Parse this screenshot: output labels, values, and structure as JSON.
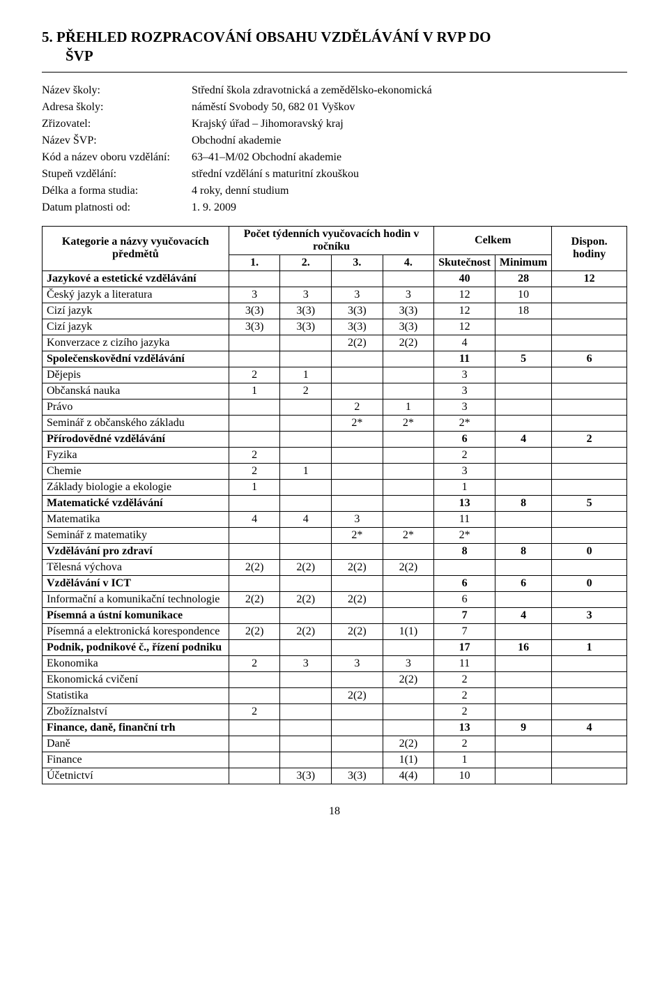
{
  "heading": "5. PŘEHLED ROZPRACOVÁNÍ OBSAHU VZDĚLÁVÁNÍ V RVP DO",
  "heading_line2": "ŠVP",
  "meta": {
    "school_name_label": "Název školy:",
    "school_name": "Střední škola zdravotnická a zemědělsko-ekonomická",
    "address_label": "Adresa školy:",
    "address": "náměstí Svobody 50, 682 01 Vyškov",
    "founder_label": "Zřizovatel:",
    "founder": "Krajský úřad – Jihomoravský kraj",
    "svp_label": "Název ŠVP:",
    "svp": "Obchodní akademie",
    "code_label": "Kód a název oboru vzdělání:",
    "code": "63–41–M/02 Obchodní akademie",
    "level_label": "Stupeň vzdělání:",
    "level": "střední vzdělání s maturitní zkouškou",
    "length_label": "Délka a forma studia:",
    "length": "4 roky, denní studium",
    "valid_label": "Datum platnosti od:",
    "valid": "1. 9. 2009"
  },
  "table": {
    "header_subjects": "Kategorie a názvy vyučovacích předmětů",
    "header_weekly": "Počet týdenních vyučovacích hodin v ročníku",
    "header_total": "Celkem",
    "col1": "1.",
    "col2": "2.",
    "col3": "3.",
    "col4": "4.",
    "col_actual": "Skutečnost",
    "col_min": "Minimum",
    "col_disp": "Dispon. hodiny",
    "rows": [
      {
        "label": "Jazykové a estetické vzdělávání",
        "c1": "",
        "c2": "",
        "c3": "",
        "c4": "",
        "actual": "40",
        "min": "28",
        "disp": "12",
        "cat": true
      },
      {
        "label": "Český jazyk a literatura",
        "c1": "3",
        "c2": "3",
        "c3": "3",
        "c4": "3",
        "actual": "12",
        "min": "10",
        "disp": ""
      },
      {
        "label": "Cizí jazyk",
        "c1": "3(3)",
        "c2": "3(3)",
        "c3": "3(3)",
        "c4": "3(3)",
        "actual": "12",
        "min": "18",
        "disp": ""
      },
      {
        "label": "Cizí jazyk",
        "c1": "3(3)",
        "c2": "3(3)",
        "c3": "3(3)",
        "c4": "3(3)",
        "actual": "12",
        "min": "",
        "disp": ""
      },
      {
        "label": "Konverzace z cizího jazyka",
        "c1": "",
        "c2": "",
        "c3": "2(2)",
        "c4": "2(2)",
        "actual": "4",
        "min": "",
        "disp": ""
      },
      {
        "label": "Společenskovědní vzdělávání",
        "c1": "",
        "c2": "",
        "c3": "",
        "c4": "",
        "actual": "11",
        "min": "5",
        "disp": "6",
        "cat": true
      },
      {
        "label": "Dějepis",
        "c1": "2",
        "c2": "1",
        "c3": "",
        "c4": "",
        "actual": "3",
        "min": "",
        "disp": ""
      },
      {
        "label": "Občanská nauka",
        "c1": "1",
        "c2": "2",
        "c3": "",
        "c4": "",
        "actual": "3",
        "min": "",
        "disp": ""
      },
      {
        "label": "Právo",
        "c1": "",
        "c2": "",
        "c3": "2",
        "c4": "1",
        "actual": "3",
        "min": "",
        "disp": ""
      },
      {
        "label": "Seminář z občanského základu",
        "c1": "",
        "c2": "",
        "c3": "2*",
        "c4": "2*",
        "actual": "2*",
        "min": "",
        "disp": ""
      },
      {
        "label": "Přírodovědné vzdělávání",
        "c1": "",
        "c2": "",
        "c3": "",
        "c4": "",
        "actual": "6",
        "min": "4",
        "disp": "2",
        "cat": true
      },
      {
        "label": "Fyzika",
        "c1": "2",
        "c2": "",
        "c3": "",
        "c4": "",
        "actual": "2",
        "min": "",
        "disp": ""
      },
      {
        "label": "Chemie",
        "c1": "2",
        "c2": "1",
        "c3": "",
        "c4": "",
        "actual": "3",
        "min": "",
        "disp": ""
      },
      {
        "label": "Základy biologie a ekologie",
        "c1": "1",
        "c2": "",
        "c3": "",
        "c4": "",
        "actual": "1",
        "min": "",
        "disp": ""
      },
      {
        "label": "Matematické vzdělávání",
        "c1": "",
        "c2": "",
        "c3": "",
        "c4": "",
        "actual": "13",
        "min": "8",
        "disp": "5",
        "cat": true
      },
      {
        "label": "Matematika",
        "c1": "4",
        "c2": "4",
        "c3": "3",
        "c4": "",
        "actual": "11",
        "min": "",
        "disp": ""
      },
      {
        "label": "Seminář z matematiky",
        "c1": "",
        "c2": "",
        "c3": "2*",
        "c4": "2*",
        "actual": "2*",
        "min": "",
        "disp": ""
      },
      {
        "label": "Vzdělávání pro zdraví",
        "c1": "",
        "c2": "",
        "c3": "",
        "c4": "",
        "actual": "8",
        "min": "8",
        "disp": "0",
        "cat": true
      },
      {
        "label": "Tělesná výchova",
        "c1": "2(2)",
        "c2": "2(2)",
        "c3": "2(2)",
        "c4": "2(2)",
        "actual": "",
        "min": "",
        "disp": ""
      },
      {
        "label": "Vzdělávání v ICT",
        "c1": "",
        "c2": "",
        "c3": "",
        "c4": "",
        "actual": "6",
        "min": "6",
        "disp": "0",
        "cat": true
      },
      {
        "label": "Informační a komunikační technologie",
        "c1": "2(2)",
        "c2": "2(2)",
        "c3": "2(2)",
        "c4": "",
        "actual": "6",
        "min": "",
        "disp": ""
      },
      {
        "label": "Písemná a ústní komunikace",
        "c1": "",
        "c2": "",
        "c3": "",
        "c4": "",
        "actual": "7",
        "min": "4",
        "disp": "3",
        "cat": true
      },
      {
        "label": "Písemná a elektronická korespondence",
        "c1": "2(2)",
        "c2": "2(2)",
        "c3": "2(2)",
        "c4": "1(1)",
        "actual": "7",
        "min": "",
        "disp": ""
      },
      {
        "label": "Podnik, podnikové č., řízení podniku",
        "c1": "",
        "c2": "",
        "c3": "",
        "c4": "",
        "actual": "17",
        "min": "16",
        "disp": "1",
        "cat": true
      },
      {
        "label": "Ekonomika",
        "c1": "2",
        "c2": "3",
        "c3": "3",
        "c4": "3",
        "actual": "11",
        "min": "",
        "disp": ""
      },
      {
        "label": "Ekonomická cvičení",
        "c1": "",
        "c2": "",
        "c3": "",
        "c4": "2(2)",
        "actual": "2",
        "min": "",
        "disp": ""
      },
      {
        "label": "Statistika",
        "c1": "",
        "c2": "",
        "c3": "2(2)",
        "c4": "",
        "actual": "2",
        "min": "",
        "disp": ""
      },
      {
        "label": "Zbožíznalství",
        "c1": "2",
        "c2": "",
        "c3": "",
        "c4": "",
        "actual": "2",
        "min": "",
        "disp": ""
      },
      {
        "label": "Finance, daně, finanční trh",
        "c1": "",
        "c2": "",
        "c3": "",
        "c4": "",
        "actual": "13",
        "min": "9",
        "disp": "4",
        "cat": true
      },
      {
        "label": "Daně",
        "c1": "",
        "c2": "",
        "c3": "",
        "c4": "2(2)",
        "actual": "2",
        "min": "",
        "disp": ""
      },
      {
        "label": "Finance",
        "c1": "",
        "c2": "",
        "c3": "",
        "c4": "1(1)",
        "actual": "1",
        "min": "",
        "disp": ""
      },
      {
        "label": "Účetnictví",
        "c1": "",
        "c2": "3(3)",
        "c3": "3(3)",
        "c4": "4(4)",
        "actual": "10",
        "min": "",
        "disp": ""
      }
    ]
  },
  "page_number": "18"
}
